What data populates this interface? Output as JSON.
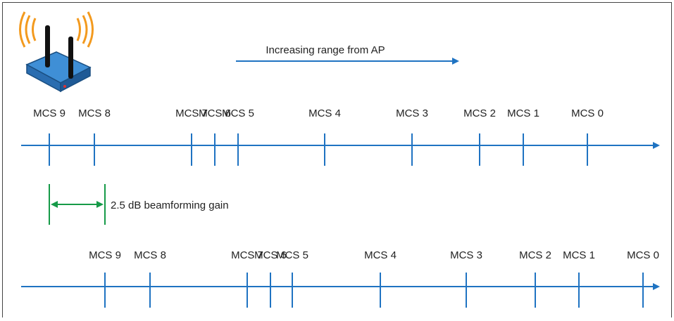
{
  "title": "Increasing range from AP",
  "rows": [
    {
      "labels": [
        "MCS 9",
        "MCS 8",
        "MCS 7",
        "MCS 6",
        "MCS 5",
        "MCS 4",
        "MCS 3",
        "MCS 2",
        "MCS 1",
        "MCS 0"
      ]
    },
    {
      "labels": [
        "MCS 9",
        "MCS 8",
        "MCS 7",
        "MCS 6",
        "MCS 5",
        "MCS 4",
        "MCS 3",
        "MCS 2",
        "MCS 1",
        "MCS 0"
      ]
    }
  ],
  "annotation": "2.5 dB beamforming gain"
}
